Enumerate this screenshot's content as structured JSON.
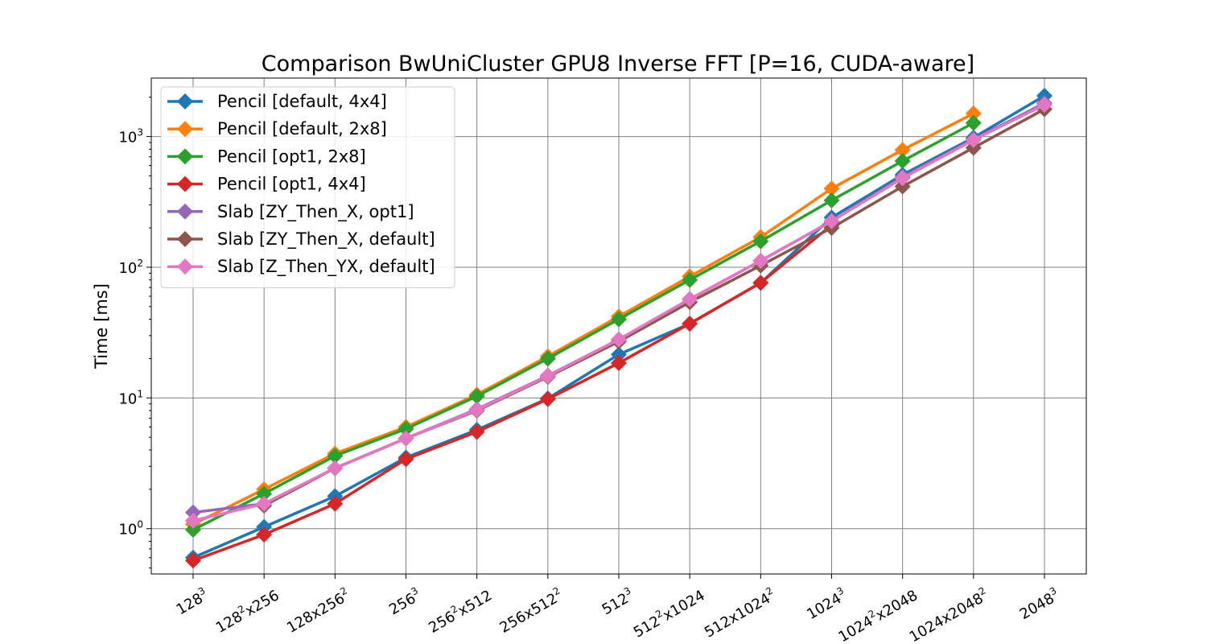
{
  "chart_data": {
    "type": "line",
    "title": "Comparison BwUniCluster GPU8 Inverse FFT [P=16, CUDA-aware]",
    "xlabel": "",
    "ylabel": "Time [ms]",
    "yscale": "log",
    "ylim": [
      0.45,
      2800
    ],
    "grid": true,
    "legend_position": "upper-left",
    "categories": [
      {
        "base": "128",
        "sup": "3",
        "rest": "",
        "sup2": ""
      },
      {
        "base": "128",
        "sup": "2",
        "rest": "x256",
        "sup2": ""
      },
      {
        "base": "128x256",
        "sup": "2",
        "rest": "",
        "sup2": ""
      },
      {
        "base": "256",
        "sup": "3",
        "rest": "",
        "sup2": ""
      },
      {
        "base": "256",
        "sup": "2",
        "rest": "x512",
        "sup2": ""
      },
      {
        "base": "256x512",
        "sup": "2",
        "rest": "",
        "sup2": ""
      },
      {
        "base": "512",
        "sup": "3",
        "rest": "",
        "sup2": ""
      },
      {
        "base": "512",
        "sup": "2",
        "rest": "x1024",
        "sup2": ""
      },
      {
        "base": "512x1024",
        "sup": "2",
        "rest": "",
        "sup2": ""
      },
      {
        "base": "1024",
        "sup": "3",
        "rest": "",
        "sup2": ""
      },
      {
        "base": "1024",
        "sup": "2",
        "rest": "x2048",
        "sup2": ""
      },
      {
        "base": "1024x2048",
        "sup": "2",
        "rest": "",
        "sup2": ""
      },
      {
        "base": "2048",
        "sup": "3",
        "rest": "",
        "sup2": ""
      }
    ],
    "y_ticks": [
      {
        "value": 1,
        "base": "10",
        "exp": "0"
      },
      {
        "value": 10,
        "base": "10",
        "exp": "1"
      },
      {
        "value": 100,
        "base": "10",
        "exp": "2"
      },
      {
        "value": 1000,
        "base": "10",
        "exp": "3"
      }
    ],
    "series": [
      {
        "name": "Pencil [default, 4x4]",
        "color": "#1f77b4",
        "values": [
          0.6,
          1.03,
          1.77,
          3.5,
          5.7,
          9.9,
          21.5,
          37,
          76,
          240,
          510,
          980,
          2050
        ]
      },
      {
        "name": "Pencil [default, 2x8]",
        "color": "#ff7f0e",
        "values": [
          1.08,
          2.0,
          3.75,
          6.0,
          10.6,
          20.8,
          42,
          85,
          170,
          400,
          790,
          1500,
          null
        ]
      },
      {
        "name": "Pencil [opt1, 2x8]",
        "color": "#2ca02c",
        "values": [
          0.98,
          1.85,
          3.6,
          5.8,
          10.3,
          20,
          40,
          80,
          158,
          325,
          650,
          1270,
          null
        ]
      },
      {
        "name": "Pencil [opt1, 4x4]",
        "color": "#d62728",
        "values": [
          0.57,
          0.9,
          1.55,
          3.4,
          5.5,
          9.8,
          18.5,
          37,
          76,
          210,
          null,
          null,
          null
        ]
      },
      {
        "name": "Slab [ZY_Then_X, opt1]",
        "color": "#9467bd",
        "values": [
          1.33,
          1.55,
          2.9,
          4.9,
          8.2,
          14.8,
          28,
          57,
          112,
          225,
          490,
          950,
          1800
        ]
      },
      {
        "name": "Slab [ZY_Then_X, default]",
        "color": "#8c564b",
        "values": [
          null,
          1.5,
          2.9,
          4.9,
          8.0,
          14.5,
          27,
          54,
          103,
          200,
          415,
          820,
          1620
        ]
      },
      {
        "name": "Slab [Z_Then_YX, default]",
        "color": "#e377c2",
        "values": [
          1.15,
          1.55,
          2.9,
          4.9,
          8.1,
          14.7,
          28,
          57,
          112,
          225,
          480,
          940,
          1750
        ]
      }
    ]
  }
}
